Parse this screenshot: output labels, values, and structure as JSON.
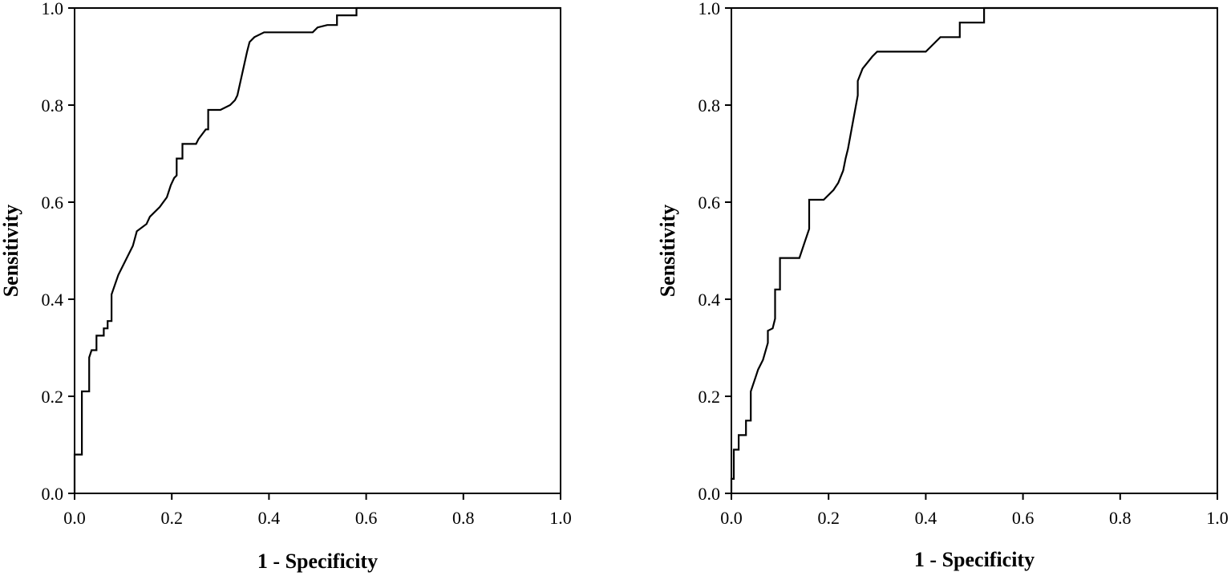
{
  "chart_data": [
    {
      "type": "line",
      "title": "",
      "xlabel": "1 - Specificity",
      "ylabel": "Sensitivity",
      "xlim": [
        0,
        1
      ],
      "ylim": [
        0,
        1
      ],
      "x_ticks": [
        "0.0",
        "0.2",
        "0.4",
        "0.6",
        "0.8",
        "1.0"
      ],
      "y_ticks": [
        "0.0",
        "0.2",
        "0.4",
        "0.6",
        "0.8",
        "1.0"
      ],
      "grid": false,
      "series": [
        {
          "x": [
            0.0,
            0.0,
            0.015,
            0.015,
            0.03,
            0.03,
            0.035,
            0.045,
            0.045,
            0.06,
            0.06,
            0.068,
            0.068,
            0.076,
            0.076,
            0.09,
            0.12,
            0.12,
            0.128,
            0.128,
            0.148,
            0.148,
            0.155,
            0.155,
            0.175,
            0.175,
            0.19,
            0.198,
            0.198,
            0.205,
            0.21,
            0.21,
            0.222,
            0.222,
            0.25,
            0.255,
            0.27,
            0.275,
            0.275,
            0.3,
            0.32,
            0.33,
            0.335,
            0.355,
            0.36,
            0.37,
            0.39,
            0.49,
            0.5,
            0.52,
            0.54,
            0.54,
            0.58,
            0.58,
            1.0
          ],
          "y": [
            0.0,
            0.08,
            0.08,
            0.21,
            0.21,
            0.28,
            0.295,
            0.295,
            0.325,
            0.325,
            0.34,
            0.34,
            0.355,
            0.355,
            0.41,
            0.45,
            0.51,
            0.51,
            0.54,
            0.54,
            0.555,
            0.555,
            0.57,
            0.57,
            0.59,
            0.59,
            0.61,
            0.635,
            0.635,
            0.65,
            0.655,
            0.69,
            0.69,
            0.72,
            0.72,
            0.73,
            0.75,
            0.75,
            0.79,
            0.79,
            0.8,
            0.81,
            0.82,
            0.91,
            0.93,
            0.94,
            0.95,
            0.95,
            0.96,
            0.965,
            0.965,
            0.985,
            0.985,
            1.0,
            1.0
          ]
        }
      ]
    },
    {
      "type": "line",
      "title": "",
      "xlabel": "1 - Specificity",
      "ylabel": "Sensitivity",
      "xlim": [
        0,
        1
      ],
      "ylim": [
        0,
        1
      ],
      "x_ticks": [
        "0.0",
        "0.2",
        "0.4",
        "0.6",
        "0.8",
        "1.0"
      ],
      "y_ticks": [
        "0.0",
        "0.2",
        "0.4",
        "0.6",
        "0.8",
        "1.0"
      ],
      "grid": false,
      "series": [
        {
          "x": [
            0.0,
            0.0,
            0.005,
            0.005,
            0.015,
            0.015,
            0.03,
            0.03,
            0.04,
            0.04,
            0.05,
            0.055,
            0.065,
            0.075,
            0.075,
            0.085,
            0.09,
            0.09,
            0.1,
            0.1,
            0.14,
            0.15,
            0.16,
            0.16,
            0.19,
            0.21,
            0.22,
            0.23,
            0.235,
            0.24,
            0.26,
            0.26,
            0.27,
            0.29,
            0.3,
            0.4,
            0.41,
            0.43,
            0.47,
            0.47,
            0.52,
            0.52,
            1.0
          ],
          "y": [
            0.0,
            0.03,
            0.03,
            0.09,
            0.09,
            0.12,
            0.12,
            0.15,
            0.15,
            0.21,
            0.24,
            0.255,
            0.275,
            0.31,
            0.335,
            0.34,
            0.36,
            0.42,
            0.42,
            0.485,
            0.485,
            0.515,
            0.545,
            0.605,
            0.605,
            0.625,
            0.64,
            0.665,
            0.69,
            0.71,
            0.82,
            0.85,
            0.875,
            0.9,
            0.91,
            0.91,
            0.92,
            0.94,
            0.94,
            0.97,
            0.97,
            1.0,
            1.0
          ]
        }
      ]
    }
  ]
}
